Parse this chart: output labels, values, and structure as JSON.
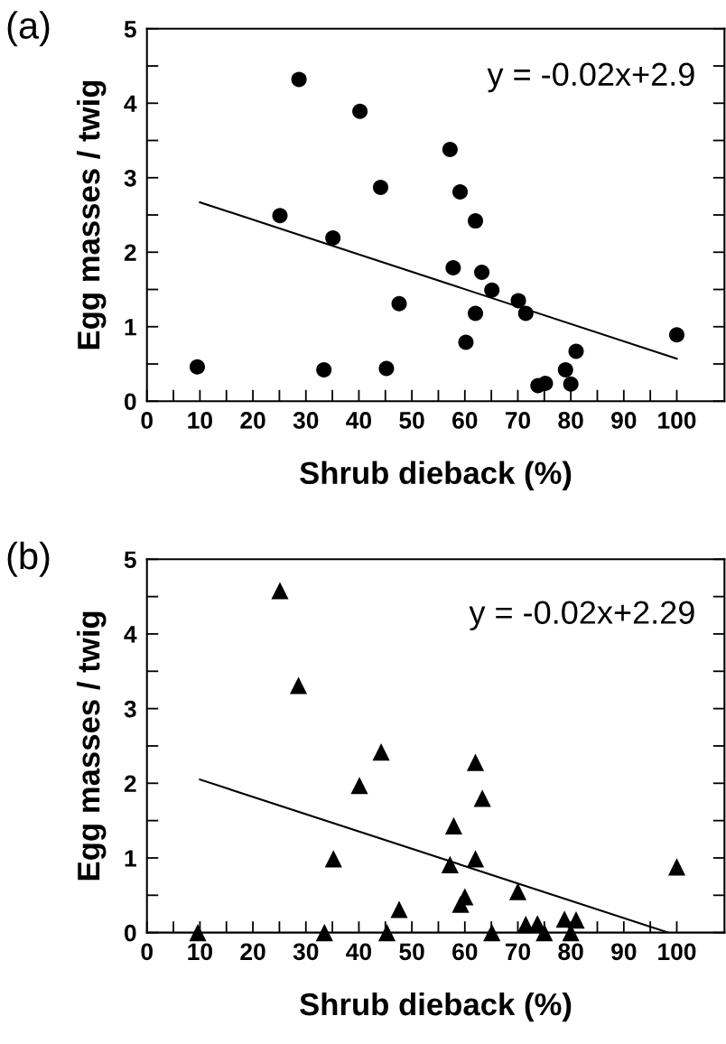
{
  "chart_data": [
    {
      "type": "scatter",
      "title": "(a)",
      "xlabel": "Shrub dieback (%)",
      "ylabel": "Egg masses / twig",
      "marker": "circle",
      "grid": false,
      "annotations": [
        "y = -0.02x+2.9"
      ],
      "xlim": [
        0,
        109
      ],
      "ylim": [
        0,
        5
      ],
      "xticks": [
        0,
        {
          "value": 5,
          "label": null
        },
        10,
        {
          "value": 15,
          "label": null
        },
        20,
        {
          "value": 25,
          "label": null
        },
        30,
        {
          "value": 35,
          "label": null
        },
        40,
        {
          "value": 45,
          "label": null
        },
        50,
        {
          "value": 55,
          "label": null
        },
        60,
        {
          "value": 65,
          "label": null
        },
        70,
        {
          "value": 75,
          "label": null
        },
        80,
        {
          "value": 85,
          "label": null
        },
        90,
        {
          "value": 95,
          "label": null
        },
        100
      ],
      "yticks": [
        0,
        {
          "value": 0.5,
          "label": null
        },
        1,
        {
          "value": 1.5,
          "label": null
        },
        2,
        {
          "value": 2.5,
          "label": null
        },
        3,
        {
          "value": 3.5,
          "label": null
        },
        4,
        {
          "value": 4.5,
          "label": null
        },
        5
      ],
      "series": [
        {
          "color": "#000000",
          "x": [
            9.5,
            28.7,
            40.2,
            44.1,
            25.1,
            35.1,
            47.6,
            33.4,
            45.2,
            57.2,
            59.1,
            62.0,
            57.8,
            63.2,
            65.1,
            70.1,
            71.5,
            62.0,
            60.2,
            81.0,
            79.0,
            80.0,
            73.8,
            75.2,
            100.0
          ],
          "values": [
            0.46,
            4.32,
            3.89,
            2.87,
            2.49,
            2.19,
            1.31,
            0.42,
            0.44,
            3.38,
            2.81,
            2.42,
            1.79,
            1.73,
            1.49,
            1.35,
            1.18,
            1.18,
            0.79,
            0.67,
            0.42,
            0.23,
            0.21,
            0.24,
            0.89
          ]
        },
        {
          "type": "line",
          "marker": "none",
          "color": "#000000",
          "x": [
            10,
            100
          ],
          "values": [
            2.67,
            0.57
          ]
        }
      ]
    },
    {
      "type": "scatter",
      "title": "(b)",
      "xlabel": "Shrub dieback (%)",
      "ylabel": "Egg masses / twig",
      "marker": "triangle",
      "grid": false,
      "annotations": [
        "y = -0.02x+2.29"
      ],
      "xlim": [
        0,
        109
      ],
      "ylim": [
        0,
        5
      ],
      "xticks": [
        0,
        {
          "value": 5,
          "label": null
        },
        10,
        {
          "value": 15,
          "label": null
        },
        20,
        {
          "value": 25,
          "label": null
        },
        30,
        {
          "value": 35,
          "label": null
        },
        40,
        {
          "value": 45,
          "label": null
        },
        50,
        {
          "value": 55,
          "label": null
        },
        60,
        {
          "value": 65,
          "label": null
        },
        70,
        {
          "value": 75,
          "label": null
        },
        80,
        {
          "value": 85,
          "label": null
        },
        90,
        {
          "value": 95,
          "label": null
        },
        100
      ],
      "yticks": [
        0,
        {
          "value": 0.5,
          "label": null
        },
        1,
        {
          "value": 1.5,
          "label": null
        },
        2,
        {
          "value": 2.5,
          "label": null
        },
        3,
        {
          "value": 3.5,
          "label": null
        },
        4,
        {
          "value": 4.5,
          "label": null
        },
        5
      ],
      "series": [
        {
          "color": "#000000",
          "x": [
            9.6,
            25.1,
            28.6,
            44.2,
            40.1,
            35.2,
            47.6,
            33.5,
            45.3,
            62.0,
            63.3,
            57.9,
            62.0,
            57.2,
            60.0,
            59.2,
            70.0,
            71.5,
            73.7,
            75.0,
            65.1,
            78.8,
            81.0,
            80.0,
            100.0
          ],
          "values": [
            0,
            4.58,
            3.31,
            2.42,
            1.97,
            0.99,
            0.31,
            0,
            0,
            2.28,
            1.8,
            1.43,
            0.99,
            0.91,
            0.48,
            0.38,
            0.55,
            0.11,
            0.12,
            0,
            0,
            0.18,
            0.17,
            0,
            0.88
          ]
        },
        {
          "type": "line",
          "marker": "none",
          "color": "#000000",
          "x": [
            10,
            98.4
          ],
          "values": [
            2.05,
            0
          ]
        }
      ]
    }
  ]
}
